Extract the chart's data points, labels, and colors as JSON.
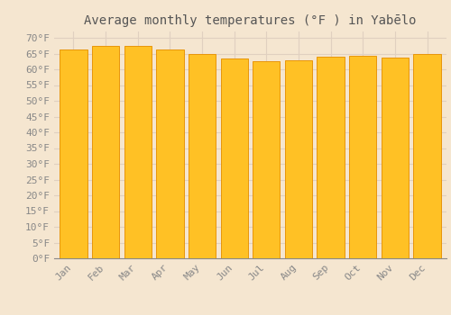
{
  "title": "Average monthly temperatures (°F ) in Yabēlo",
  "months": [
    "Jan",
    "Feb",
    "Mar",
    "Apr",
    "May",
    "Jun",
    "Jul",
    "Aug",
    "Sep",
    "Oct",
    "Nov",
    "Dec"
  ],
  "values": [
    66.2,
    67.3,
    67.3,
    66.2,
    64.9,
    63.3,
    62.6,
    62.8,
    64.0,
    64.2,
    63.8,
    64.8
  ],
  "bar_color_face": "#FFC125",
  "bar_color_edge": "#E8960A",
  "background_color": "#F5E6D0",
  "plot_bg_color": "#F5E6D0",
  "grid_color": "#E0D0C0",
  "ytick_labels": [
    "0°F",
    "5°F",
    "10°F",
    "15°F",
    "20°F",
    "25°F",
    "30°F",
    "35°F",
    "40°F",
    "45°F",
    "50°F",
    "55°F",
    "60°F",
    "65°F",
    "70°F"
  ],
  "ytick_values": [
    0,
    5,
    10,
    15,
    20,
    25,
    30,
    35,
    40,
    45,
    50,
    55,
    60,
    65,
    70
  ],
  "ylim": [
    0,
    72
  ],
  "title_fontsize": 10,
  "tick_fontsize": 8,
  "font_color": "#888888",
  "title_color": "#555555",
  "bar_width": 0.85
}
